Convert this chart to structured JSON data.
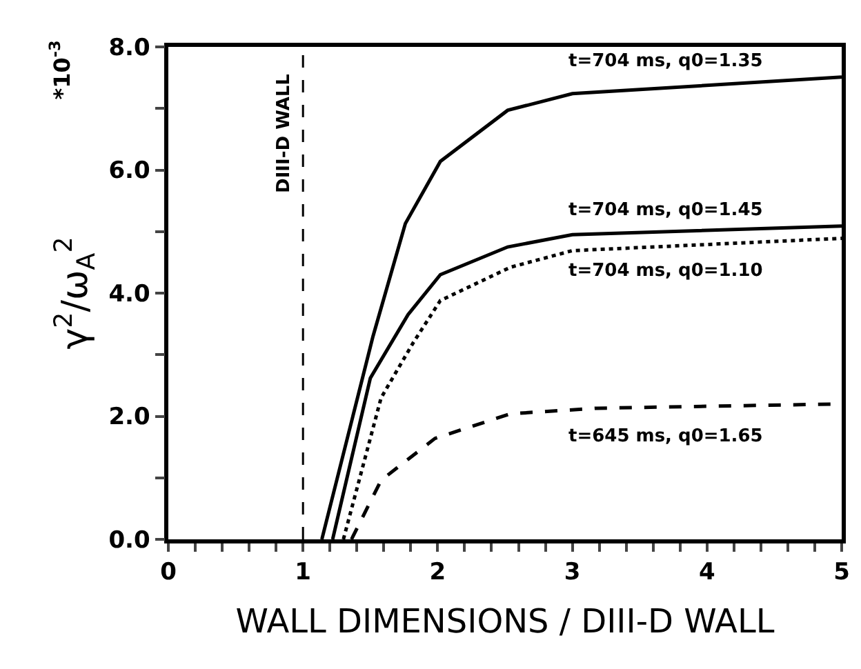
{
  "chart_data": {
    "type": "line",
    "xlabel": "WALL DIMENSIONS / DIII-D WALL",
    "ylabel": "γ$^{2}$/ω$_{A}$$^{2}$",
    "annotations": [
      "*10$^{-3}$"
    ],
    "series": [
      {
        "name": "t=704 ms, q0=1.35",
        "color": "#000000",
        "line_style": "solid",
        "x": [
          1.14,
          1.52,
          1.76,
          2.02,
          2.52,
          3.0,
          5.0
        ],
        "values": [
          0,
          3.3,
          5.13,
          6.14,
          6.97,
          7.24,
          7.51
        ]
      },
      {
        "name": "t=704 ms, q0=1.45",
        "color": "#000000",
        "line_style": "solid",
        "x": [
          1.22,
          1.5,
          1.78,
          2.02,
          2.52,
          3.0,
          5.0
        ],
        "values": [
          0,
          2.62,
          3.65,
          4.3,
          4.75,
          4.95,
          5.09
        ]
      },
      {
        "name": "t=704 ms, q0=1.10",
        "color": "#000000",
        "line_style": "dotted",
        "x": [
          1.3,
          1.58,
          1.82,
          2.02,
          2.54,
          3.0,
          5.0
        ],
        "values": [
          0,
          2.3,
          3.2,
          3.88,
          4.42,
          4.69,
          4.89
        ]
      },
      {
        "name": "t=645 ms, q0=1.65",
        "color": "#000000",
        "line_style": "dashed",
        "x": [
          1.36,
          1.58,
          1.98,
          2.54,
          3.18,
          5.0
        ],
        "values": [
          0,
          0.96,
          1.64,
          2.04,
          2.13,
          2.2
        ]
      }
    ],
    "xlim": [
      0,
      5
    ],
    "xticks": [
      0,
      {
        "value": 0.2,
        "label": null
      },
      {
        "value": 0.4,
        "label": null
      },
      {
        "value": 0.6,
        "label": null
      },
      {
        "value": 0.8,
        "label": null
      },
      1,
      {
        "value": 1.2,
        "label": null
      },
      {
        "value": 1.4,
        "label": null
      },
      {
        "value": 1.6,
        "label": null
      },
      {
        "value": 1.8,
        "label": null
      },
      2,
      {
        "value": 2.2,
        "label": null
      },
      {
        "value": 2.4,
        "label": null
      },
      {
        "value": 2.6,
        "label": null
      },
      {
        "value": 2.8,
        "label": null
      },
      3,
      {
        "value": 3.2,
        "label": null
      },
      {
        "value": 3.4,
        "label": null
      },
      {
        "value": 3.6,
        "label": null
      },
      {
        "value": 3.8,
        "label": null
      },
      4,
      {
        "value": 4.2,
        "label": null
      },
      {
        "value": 4.4,
        "label": null
      },
      {
        "value": 4.6,
        "label": null
      },
      {
        "value": 4.8,
        "label": null
      },
      5
    ],
    "ylim": [
      0,
      8
    ],
    "yticks": [
      {
        "value": 0,
        "label": "0.0"
      },
      {
        "value": 1,
        "label": null
      },
      {
        "value": 2,
        "label": "2.0"
      },
      {
        "value": 3,
        "label": null
      },
      {
        "value": 4,
        "label": "4.0"
      },
      {
        "value": 5,
        "label": null
      },
      {
        "value": 6,
        "label": "6.0"
      },
      {
        "value": 7,
        "label": null
      },
      {
        "value": 8,
        "label": "8.0"
      }
    ],
    "ref_lines": [
      {
        "axis": "x",
        "value": 1,
        "label": "DIII-D WALL",
        "line_style": "dashed",
        "color": "#000000"
      }
    ],
    "grid": false,
    "legend": false,
    "marker": "none"
  }
}
